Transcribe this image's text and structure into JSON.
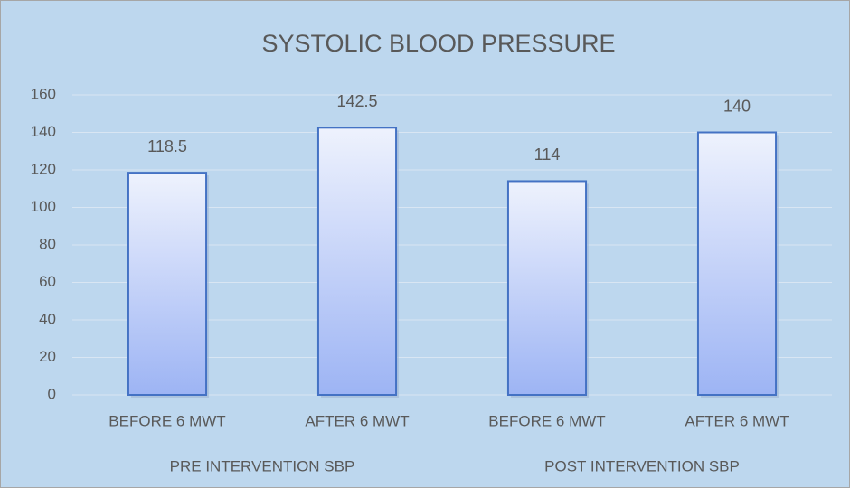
{
  "chart_data": {
    "type": "bar",
    "title": "SYSTOLIC BLOOD PRESSURE",
    "groups": [
      {
        "name": "PRE INTERVENTION SBP",
        "categories": [
          "BEFORE 6 MWT",
          "AFTER 6 MWT"
        ],
        "values": [
          118.5,
          142.5
        ]
      },
      {
        "name": "POST INTERVENTION SBP",
        "categories": [
          "BEFORE 6 MWT",
          "AFTER 6 MWT"
        ],
        "values": [
          114,
          140
        ]
      }
    ],
    "color": "#4472c4",
    "ylim": [
      0,
      160
    ],
    "yticks": [
      0,
      20,
      40,
      60,
      80,
      100,
      120,
      140,
      160
    ],
    "grid": true
  }
}
